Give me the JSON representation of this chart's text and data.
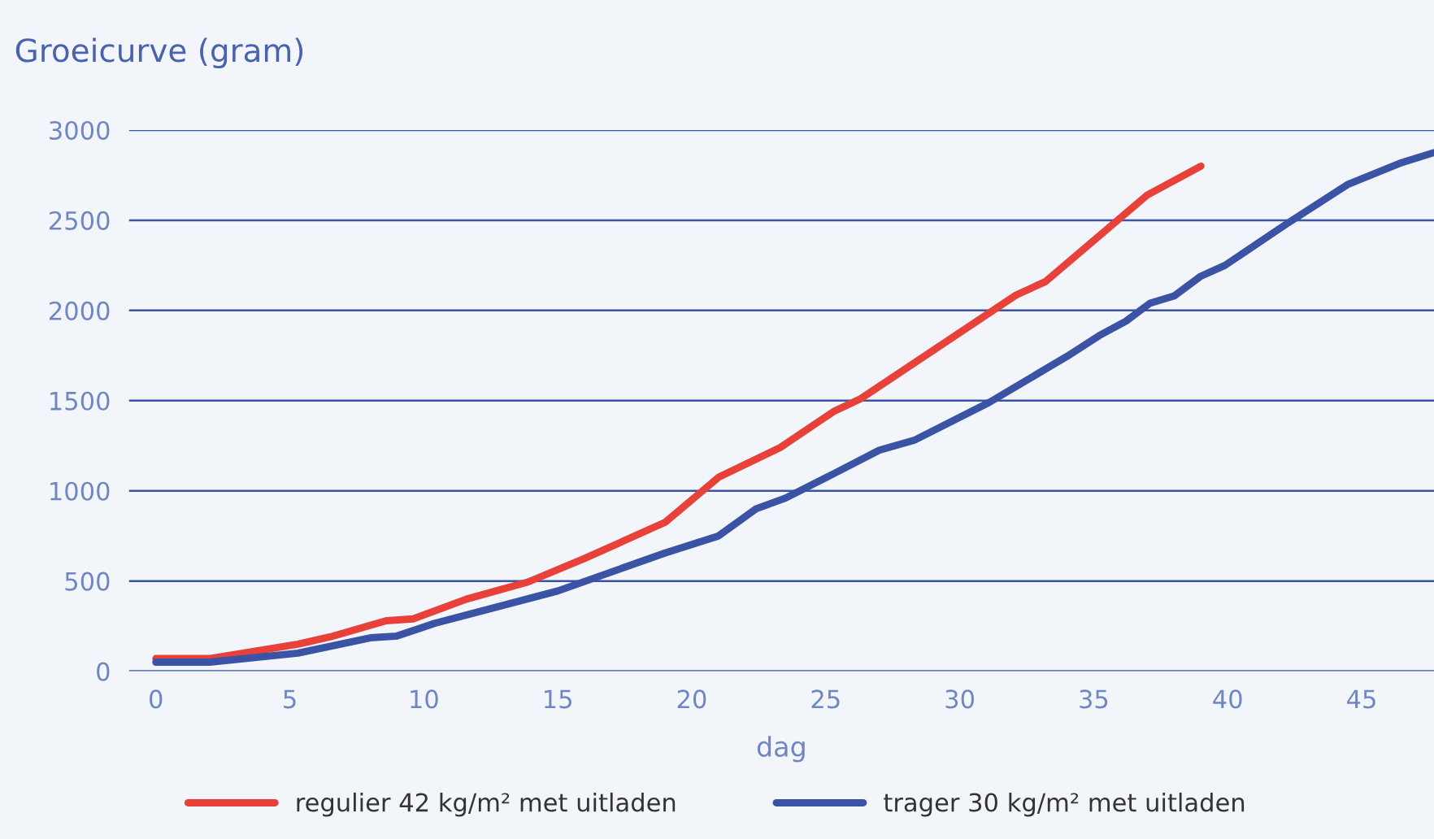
{
  "chart_data": {
    "type": "line",
    "title": "Groeicurve (gram)",
    "xlabel": "dag",
    "xlim": [
      -1,
      47.7
    ],
    "xticks": [
      0,
      5,
      10,
      15,
      20,
      25,
      30,
      35,
      40,
      45
    ],
    "ylim": [
      0,
      3000
    ],
    "yticks": [
      0,
      500,
      1000,
      1500,
      2000,
      2500,
      3000
    ],
    "grid": "y",
    "legend": "bottom",
    "marker": "none",
    "line_style": "solid",
    "series": [
      {
        "name": "regulier 42 kg/m² met uitladen",
        "color": "#e8413a",
        "x": [
          0,
          2,
          5.3,
          6.5,
          8.6,
          9.6,
          11.6,
          13.9,
          16,
          19,
          21,
          23.3,
          25.3,
          26.3,
          32.1,
          33.2,
          37,
          39
        ],
        "values": [
          70,
          70,
          150,
          190,
          280,
          290,
          400,
          495,
          625,
          825,
          1075,
          1240,
          1440,
          1510,
          2085,
          2160,
          2640,
          2800
        ]
      },
      {
        "name": "trager 30 kg/m² met uitladen",
        "color": "#3a53a4",
        "x": [
          0,
          2,
          5.3,
          8,
          9,
          10.4,
          15,
          19,
          21,
          22.4,
          23.5,
          25.3,
          27,
          28.3,
          31.1,
          34,
          35.2,
          36.2,
          37.1,
          38,
          39,
          39.9,
          42.2,
          44.5,
          46.5,
          47.7
        ],
        "values": [
          50,
          50,
          100,
          185,
          195,
          265,
          445,
          655,
          750,
          900,
          960,
          1095,
          1225,
          1280,
          1490,
          1745,
          1860,
          1940,
          2040,
          2080,
          2190,
          2250,
          2480,
          2700,
          2820,
          2875
        ]
      }
    ]
  }
}
